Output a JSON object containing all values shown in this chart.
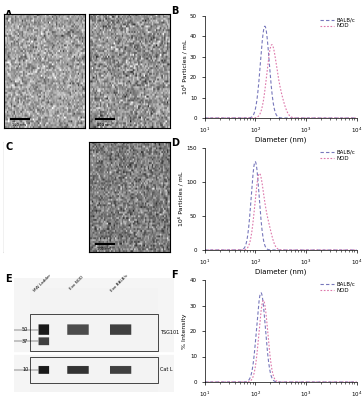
{
  "panel_B": {
    "title": "B",
    "ylabel": "10⁶ Particles / mL",
    "xlabel": "Diameter (nm)",
    "xlim": [
      10,
      10000
    ],
    "ylim": [
      0,
      50
    ],
    "yticks": [
      0,
      10,
      20,
      30,
      40,
      50
    ],
    "balbc_peak": 155,
    "balbc_peak_val": 45,
    "balbc_sigma": 0.2,
    "nod_peak": 210,
    "nod_peak_val": 35,
    "nod_sigma": 0.22,
    "nod_extra_peak": 320,
    "nod_extra_val": 8,
    "nod_extra_sigma": 0.2,
    "balbc_color": "#7777bb",
    "nod_color": "#dd77aa"
  },
  "panel_D": {
    "title": "D",
    "ylabel": "10⁶ Particles / mL",
    "xlabel": "Diameter (nm)",
    "xlim": [
      10,
      10000
    ],
    "ylim": [
      0,
      150
    ],
    "yticks": [
      0,
      50,
      100,
      150
    ],
    "balbc_peak": 100,
    "balbc_peak_val": 130,
    "balbc_sigma": 0.18,
    "nod_peak": 120,
    "nod_peak_val": 110,
    "nod_sigma": 0.2,
    "nod_extra_peak": 180,
    "nod_extra_val": 30,
    "nod_extra_sigma": 0.18,
    "balbc_color": "#7777bb",
    "nod_color": "#dd77aa"
  },
  "panel_F": {
    "title": "F",
    "ylabel": "% Intensity",
    "xlabel": "Diameter (nm)",
    "xlim": [
      10,
      10000
    ],
    "ylim": [
      0,
      40
    ],
    "yticks": [
      0,
      10,
      20,
      30,
      40
    ],
    "balbc_peak": 130,
    "balbc_peak_val": 35,
    "balbc_sigma": 0.2,
    "nod_peak": 145,
    "nod_peak_val": 32,
    "nod_sigma": 0.2,
    "nod_extra_peak": 0,
    "nod_extra_val": 0,
    "nod_extra_sigma": 0.1,
    "balbc_color": "#7777bb",
    "nod_color": "#dd77aa"
  },
  "legend_balbc": "BALB/c",
  "legend_nod": "NOD",
  "fig_width": 3.62,
  "fig_height": 4.0,
  "dpi": 100
}
